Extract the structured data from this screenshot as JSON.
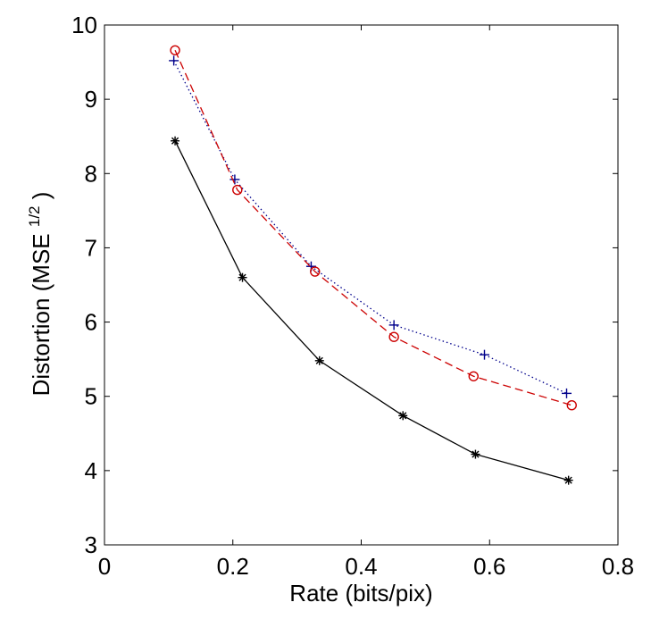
{
  "chart_data": {
    "type": "line",
    "title": "",
    "xlabel": "Rate (bits/pix)",
    "ylabel": {
      "prefix": "Distortion (MSE",
      "superscript": "1/2",
      "suffix": ")"
    },
    "xlim": [
      0,
      0.8
    ],
    "ylim": [
      3,
      10
    ],
    "xticks": [
      0,
      0.2,
      0.4,
      0.6,
      0.8
    ],
    "xtick_labels": [
      "0",
      "0.2",
      "0.4",
      "0.6",
      "0.8"
    ],
    "yticks": [
      3,
      4,
      5,
      6,
      7,
      8,
      9,
      10
    ],
    "ytick_labels": [
      "3",
      "4",
      "5",
      "6",
      "7",
      "8",
      "9",
      "10"
    ],
    "grid": false,
    "legend": "none",
    "series": [
      {
        "color": "#000000",
        "line_style": "solid",
        "marker": "asterisk",
        "x": [
          0.11,
          0.215,
          0.335,
          0.465,
          0.578,
          0.723
        ],
        "y": [
          8.44,
          6.6,
          5.48,
          4.74,
          4.22,
          3.87
        ]
      },
      {
        "color": "#00008b",
        "line_style": "dotted",
        "marker": "plus",
        "x": [
          0.108,
          0.203,
          0.322,
          0.451,
          0.592,
          0.72
        ],
        "y": [
          9.52,
          7.92,
          6.75,
          5.96,
          5.56,
          5.04
        ]
      },
      {
        "color": "#cc0000",
        "line_style": "dashed",
        "marker": "circle",
        "x": [
          0.11,
          0.207,
          0.328,
          0.451,
          0.575,
          0.728
        ],
        "y": [
          9.66,
          7.78,
          6.68,
          5.8,
          5.27,
          4.88
        ]
      }
    ]
  }
}
